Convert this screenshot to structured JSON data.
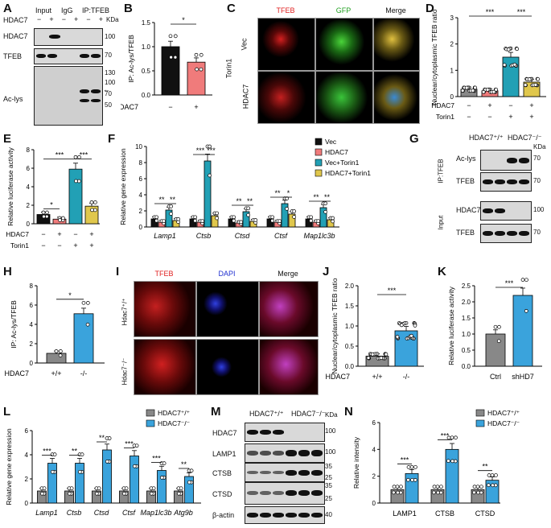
{
  "panels": {
    "A": {
      "label": "A",
      "lane_groups": [
        "Input",
        "IgG",
        "IP:TFEB"
      ],
      "hdac7_row": "HDAC7",
      "hdac7_signs": [
        "−",
        "+",
        "−",
        "+",
        "−",
        "+"
      ],
      "kda": "KDa",
      "rows": [
        "HDAC7",
        "TFEB",
        "Ac-lys"
      ],
      "markers": [
        "100",
        "70",
        "130",
        "100",
        "70",
        "50"
      ],
      "arrow": "←"
    },
    "B": {
      "label": "B",
      "ylabel": "IP: Ac-lys/TFEB",
      "xrow": "HDAC7",
      "signs": [
        "−",
        "+"
      ],
      "sig": "*",
      "yticks": [
        "0.0",
        "0.5",
        "1.0",
        "1.5"
      ]
    },
    "C": {
      "label": "C",
      "cols": [
        "TFEB",
        "GFP",
        "Merge"
      ],
      "rows": [
        "Vec",
        "HDAC7"
      ],
      "group": "Torin1"
    },
    "D": {
      "label": "D",
      "ylabel": "Nuclear/cytoplasmic TFEB ratio",
      "rows": [
        "HDAC7",
        "Torin1"
      ],
      "hdac7": [
        "−",
        "+",
        "−",
        "+"
      ],
      "torin": [
        "−",
        "−",
        "+",
        "+"
      ],
      "sig": [
        "***",
        "***"
      ],
      "yticks": [
        "0",
        "1",
        "2",
        "3"
      ]
    },
    "E": {
      "label": "E",
      "ylabel": "Relative luciferase activity",
      "rows": [
        "HDAC7",
        "Torin1"
      ],
      "hdac7": [
        "−",
        "+",
        "−",
        "+"
      ],
      "torin": [
        "−",
        "−",
        "+",
        "+"
      ],
      "sig": [
        "*",
        "***",
        "***"
      ],
      "yticks": [
        "0",
        "2",
        "4",
        "6",
        "8"
      ]
    },
    "F": {
      "label": "F",
      "ylabel": "Relative gene expression",
      "genes": [
        "Lamp1",
        "Ctsb",
        "Ctsd",
        "Ctsf",
        "Map1lc3b"
      ],
      "legend": [
        "Vec",
        "HDAC7",
        "Vec+Torin1",
        "HDAC7+Torin1"
      ],
      "sigs": [
        [
          "**",
          "**"
        ],
        [
          "***",
          "***"
        ],
        [
          "**",
          "**"
        ],
        [
          "**",
          "*"
        ],
        [
          "**",
          "**"
        ]
      ],
      "yticks": [
        "0",
        "2",
        "4",
        "6",
        "8",
        "10"
      ]
    },
    "G": {
      "label": "G",
      "groups": [
        "HDAC7⁺/⁺",
        "HDAC7⁻/⁻"
      ],
      "kda": "KDa",
      "sections": [
        "IP:TFEB",
        "Input"
      ],
      "rows": [
        "Ac-lys",
        "TFEB",
        "HDAC7",
        "TFEB"
      ],
      "markers": [
        "70",
        "70",
        "100",
        "70"
      ]
    },
    "H": {
      "label": "H",
      "ylabel": "IP: Ac-lys/TFEB",
      "xrow": "HDAC7",
      "xticks": [
        "+/+",
        "-/-"
      ],
      "sig": "*",
      "yticks": [
        "0",
        "2",
        "4",
        "6",
        "8"
      ]
    },
    "I": {
      "label": "I",
      "cols": [
        "TFEB",
        "DAPI",
        "Merge"
      ],
      "rows": [
        "Hdac7⁺/⁺",
        "Hdac7⁻/⁻"
      ]
    },
    "J": {
      "label": "J",
      "ylabel": "Nuclear/cytoplasmic TFEB ratio",
      "xrow": "HDAC7",
      "xticks": [
        "+/+",
        "-/-"
      ],
      "sig": "***",
      "yticks": [
        "0.0",
        "0.5",
        "1.0",
        "1.5",
        "2.0"
      ]
    },
    "K": {
      "label": "K",
      "ylabel": "Relative luciferase activity",
      "xticks": [
        "Ctrl",
        "shHD7"
      ],
      "sig": "***",
      "yticks": [
        "0.0",
        "0.5",
        "1.0",
        "1.5",
        "2.0",
        "2.5"
      ]
    },
    "L": {
      "label": "L",
      "ylabel": "Relative gene expression",
      "genes": [
        "Lamp1",
        "Ctsb",
        "Ctsd",
        "Ctsf",
        "Map1lc3b",
        "Atg9b"
      ],
      "legend": [
        "HDAC7⁺/⁺",
        "HDAC7⁻/⁻"
      ],
      "sigs": [
        "***",
        "**",
        "**",
        "***",
        "***",
        "**"
      ],
      "yticks": [
        "0",
        "2",
        "4",
        "6"
      ]
    },
    "M": {
      "label": "M",
      "groups": [
        "HDAC7⁺/⁺",
        "HDAC7⁻/⁻"
      ],
      "kda": "KDa",
      "rows": [
        "HDAC7",
        "LAMP1",
        "CTSB",
        "CTSD",
        "β-actin"
      ],
      "markers": [
        "100",
        "100",
        "35",
        "25",
        "35",
        "25",
        "40"
      ]
    },
    "N": {
      "label": "N",
      "ylabel": "Relative intensity",
      "cats": [
        "LAMP1",
        "CTSB",
        "CTSD"
      ],
      "legend": [
        "HDAC7⁺/⁺",
        "HDAC7⁻/⁻"
      ],
      "sigs": [
        "***",
        "***",
        "**"
      ],
      "yticks": [
        "0",
        "2",
        "4",
        "6"
      ]
    }
  },
  "colors": {
    "black": "#111111",
    "pink": "#f07b7b",
    "teal": "#22a0b5",
    "yellow": "#e0c74c",
    "gray": "#888888",
    "blue": "#3aa3dc"
  },
  "chart_data": [
    {
      "type": "bar",
      "id": "B",
      "categories": [
        "−",
        "+"
      ],
      "values": [
        1.0,
        0.68
      ],
      "ylim": [
        0,
        1.5
      ],
      "ylabel": "IP: Ac-lys/TFEB"
    },
    {
      "type": "bar",
      "id": "D",
      "categories": [
        "1",
        "2",
        "3",
        "4"
      ],
      "values": [
        0.28,
        0.22,
        1.5,
        0.55
      ],
      "ylim": [
        0,
        3
      ],
      "ylabel": "Nuclear/cytoplasmic TFEB ratio"
    },
    {
      "type": "bar",
      "id": "E",
      "categories": [
        "1",
        "2",
        "3",
        "4"
      ],
      "values": [
        1.0,
        0.5,
        5.9,
        1.9
      ],
      "ylim": [
        0,
        8
      ],
      "ylabel": "Relative luciferase activity"
    },
    {
      "type": "bar",
      "id": "F",
      "categories": [
        "Lamp1",
        "Ctsb",
        "Ctsd",
        "Ctsf",
        "Map1lc3b"
      ],
      "series": [
        {
          "name": "Vec",
          "values": [
            1.0,
            1.0,
            1.0,
            1.0,
            1.0
          ]
        },
        {
          "name": "HDAC7",
          "values": [
            0.6,
            0.6,
            0.5,
            0.6,
            0.6
          ]
        },
        {
          "name": "Vec+Torin1",
          "values": [
            2.1,
            8.2,
            1.9,
            2.9,
            2.4
          ]
        },
        {
          "name": "HDAC7+Torin1",
          "values": [
            0.8,
            1.4,
            0.7,
            1.6,
            0.9
          ]
        }
      ],
      "ylim": [
        0,
        10
      ],
      "ylabel": "Relative gene expression"
    },
    {
      "type": "bar",
      "id": "H",
      "categories": [
        "+/+",
        "-/-"
      ],
      "values": [
        1.0,
        5.1
      ],
      "ylim": [
        0,
        8
      ],
      "ylabel": "IP: Ac-lys/TFEB"
    },
    {
      "type": "bar",
      "id": "J",
      "categories": [
        "+/+",
        "-/-"
      ],
      "values": [
        0.25,
        0.88
      ],
      "ylim": [
        0,
        2.0
      ],
      "ylabel": "Nuclear/cytoplasmic TFEB ratio"
    },
    {
      "type": "bar",
      "id": "K",
      "categories": [
        "Ctrl",
        "shHD7"
      ],
      "values": [
        1.0,
        2.2
      ],
      "ylim": [
        0,
        2.5
      ],
      "ylabel": "Relative luciferase activity"
    },
    {
      "type": "bar",
      "id": "L",
      "categories": [
        "Lamp1",
        "Ctsb",
        "Ctsd",
        "Ctsf",
        "Map1lc3b",
        "Atg9b"
      ],
      "series": [
        {
          "name": "HDAC7⁺/⁺",
          "values": [
            1.0,
            1.0,
            1.0,
            1.0,
            1.0,
            1.0
          ]
        },
        {
          "name": "HDAC7⁻/⁻",
          "values": [
            3.3,
            3.3,
            4.4,
            3.9,
            2.7,
            2.2
          ]
        }
      ],
      "ylim": [
        0,
        6
      ],
      "ylabel": "Relative gene expression"
    },
    {
      "type": "bar",
      "id": "N",
      "categories": [
        "LAMP1",
        "CTSB",
        "CTSD"
      ],
      "series": [
        {
          "name": "HDAC7⁺/⁺",
          "values": [
            1.0,
            1.0,
            1.0
          ]
        },
        {
          "name": "HDAC7⁻/⁻",
          "values": [
            2.2,
            4.0,
            1.7
          ]
        }
      ],
      "ylim": [
        0,
        6
      ],
      "ylabel": "Relative intensity"
    }
  ]
}
